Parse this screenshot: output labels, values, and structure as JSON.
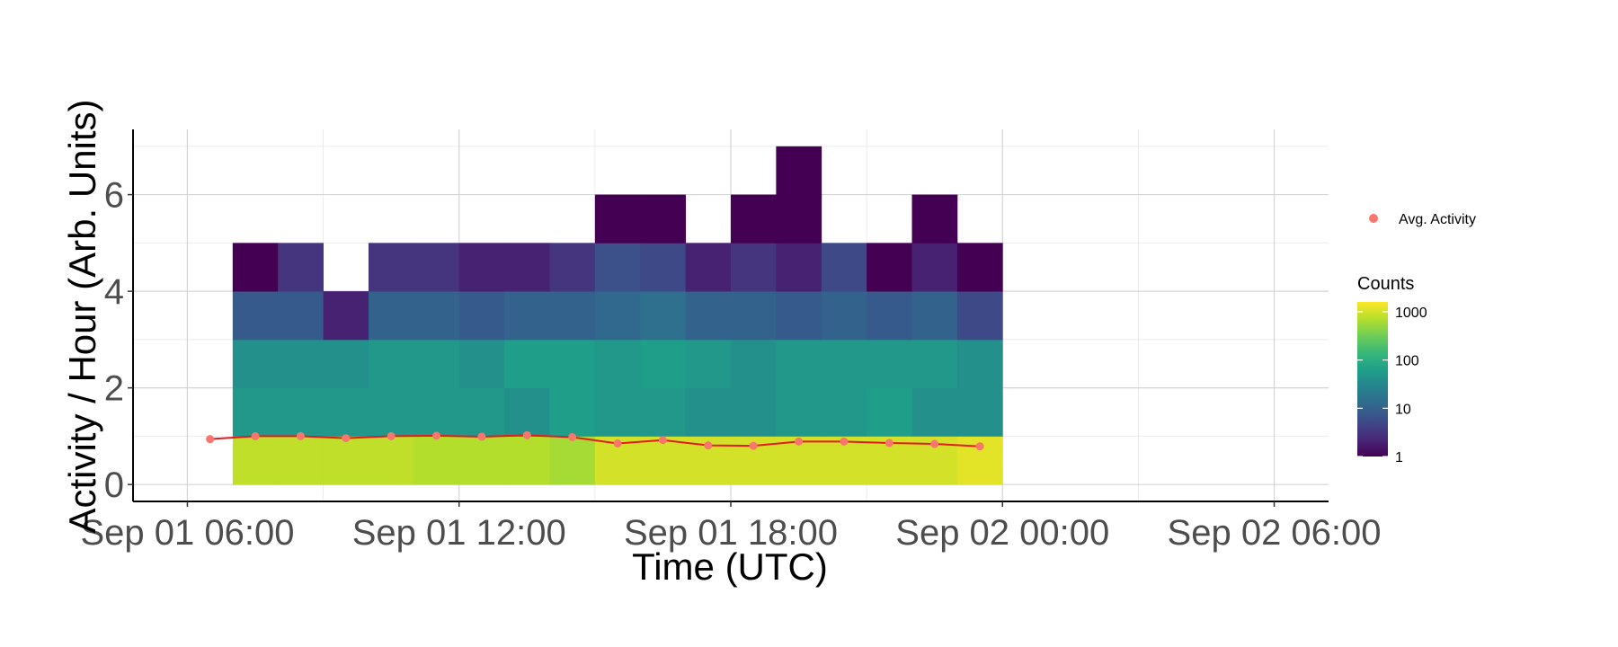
{
  "chart_data": {
    "type": "heatmap",
    "xlabel": "Time (UTC)",
    "ylabel": "Activity / Hour (Arb. Units)",
    "x_ticks": [
      "Sep 01 06:00",
      "Sep 01 12:00",
      "Sep 01 18:00",
      "Sep 02 00:00",
      "Sep 02 06:00"
    ],
    "x_tick_hours": [
      0,
      6,
      12,
      18,
      24
    ],
    "x_range_hours": [
      -1.2,
      25.2
    ],
    "y_ticks": [
      "0",
      "2",
      "4",
      "6"
    ],
    "y_tick_values": [
      0,
      2,
      4,
      6
    ],
    "ylim": [
      -0.35,
      7.35
    ],
    "grid": true,
    "legend_position": "right",
    "bin_width_hours": 1,
    "bin_height": 1,
    "columns_start_hours": [
      1,
      2,
      3,
      4,
      5,
      6,
      7,
      8,
      9,
      10,
      11,
      12,
      13,
      14,
      15,
      16,
      17
    ],
    "tiles": [
      {
        "x": 1,
        "counts": [
          800,
          50,
          40,
          8,
          1
        ]
      },
      {
        "x": 2,
        "counts": [
          800,
          50,
          40,
          8,
          3
        ]
      },
      {
        "x": 3,
        "counts": [
          800,
          50,
          40,
          2
        ]
      },
      {
        "x": 4,
        "counts": [
          800,
          50,
          50,
          10,
          3
        ]
      },
      {
        "x": 5,
        "counts": [
          700,
          50,
          50,
          10,
          3
        ]
      },
      {
        "x": 6,
        "counts": [
          700,
          50,
          40,
          8,
          2
        ]
      },
      {
        "x": 7,
        "counts": [
          700,
          40,
          60,
          10,
          2
        ]
      },
      {
        "x": 8,
        "counts": [
          600,
          60,
          60,
          10,
          3
        ]
      },
      {
        "x": 9,
        "counts": [
          1000,
          50,
          50,
          12,
          6,
          1
        ]
      },
      {
        "x": 10,
        "counts": [
          1000,
          50,
          60,
          15,
          5,
          1
        ]
      },
      {
        "x": 11,
        "counts": [
          1000,
          40,
          50,
          10,
          2
        ]
      },
      {
        "x": 12,
        "counts": [
          1000,
          40,
          40,
          10,
          3,
          1
        ]
      },
      {
        "x": 13,
        "counts": [
          1000,
          50,
          50,
          8,
          2,
          1,
          1
        ]
      },
      {
        "x": 14,
        "counts": [
          1000,
          50,
          50,
          10,
          5
        ]
      },
      {
        "x": 15,
        "counts": [
          1000,
          60,
          50,
          8,
          1
        ]
      },
      {
        "x": 16,
        "counts": [
          1000,
          40,
          50,
          10,
          2,
          1
        ]
      },
      {
        "x": 17,
        "counts": [
          1200,
          40,
          40,
          5,
          1
        ]
      }
    ],
    "series": [
      {
        "name": "Avg. Activity",
        "color": "#F8766D",
        "line_color": "#E41A1C",
        "x_hours": [
          0.5,
          1.5,
          2.5,
          3.5,
          4.5,
          5.5,
          6.5,
          7.5,
          8.5,
          9.5,
          10.5,
          11.5,
          12.5,
          13.5,
          14.5,
          15.5,
          16.5,
          17.5
        ],
        "values": [
          0.94,
          1.0,
          1.0,
          0.96,
          1.0,
          1.01,
          0.99,
          1.02,
          0.98,
          0.85,
          0.92,
          0.81,
          0.8,
          0.89,
          0.89,
          0.86,
          0.84,
          0.79
        ]
      }
    ],
    "colorbar": {
      "title": "Counts",
      "tick_labels": [
        "1000",
        "100",
        "10",
        "1"
      ],
      "tick_values": [
        1000,
        100,
        10,
        1
      ],
      "range": [
        1,
        1600
      ],
      "scale": "log10",
      "palette": [
        "#440154",
        "#482878",
        "#3E4A89",
        "#31688E",
        "#26828E",
        "#1F9E89",
        "#35B779",
        "#6DCD59",
        "#B4DE2C",
        "#FDE725"
      ]
    }
  }
}
